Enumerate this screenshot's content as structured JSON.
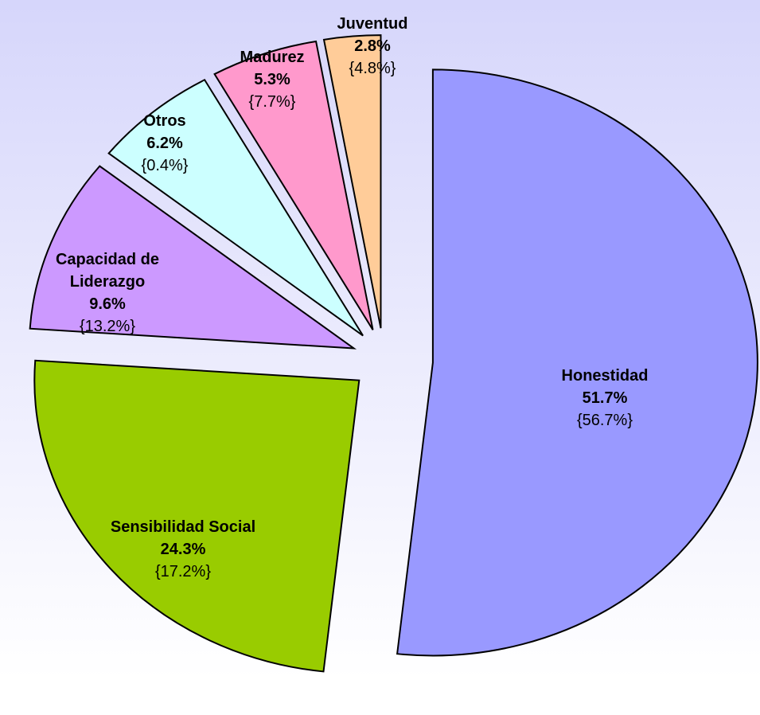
{
  "chart_data": {
    "type": "pie",
    "categories": [
      "Honestidad",
      "Sensibilidad Social",
      "Capacidad de Liderazgo",
      "Otros",
      "Madurez",
      "Juventud"
    ],
    "values": [
      51.7,
      24.3,
      9.6,
      6.2,
      5.3,
      2.8
    ],
    "value_labels": [
      "51.7%",
      "24.3%",
      "9.6%",
      "6.2%",
      "5.3%",
      "2.8%"
    ],
    "secondary_labels": [
      "{56.7%}",
      "{17.2%}",
      "{13.2%}",
      "{0.4%}",
      "{7.7%}",
      "{4.8%}"
    ],
    "colors": [
      "#9999ff",
      "#99cc00",
      "#cc99ff",
      "#ccffff",
      "#ff99cc",
      "#ffcc99"
    ]
  }
}
